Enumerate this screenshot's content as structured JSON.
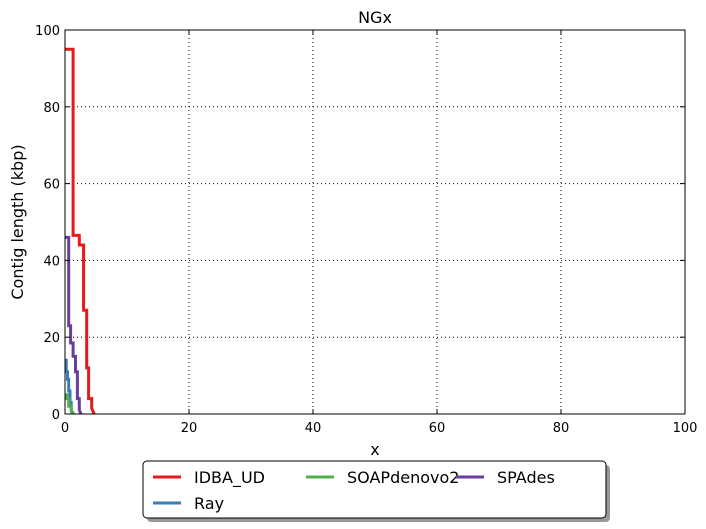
{
  "chart_data": {
    "type": "line",
    "title": "NGx",
    "xlabel": "x",
    "ylabel": "Contig length  (kbp)",
    "xlim": [
      0,
      100
    ],
    "ylim": [
      0,
      100
    ],
    "xticks": [
      0,
      20,
      40,
      60,
      80,
      100
    ],
    "yticks": [
      0,
      20,
      40,
      60,
      80,
      100
    ],
    "grid": true,
    "legend_position": "bottom-center",
    "series": [
      {
        "name": "IDBA_UD",
        "color": "#e41a1c",
        "x": [
          0,
          1.3,
          1.3,
          2.3,
          2.3,
          3.0,
          3.0,
          3.5,
          3.5,
          3.8,
          3.8,
          4.3,
          4.3,
          4.7
        ],
        "y": [
          95,
          95,
          46.5,
          46.5,
          44,
          44,
          27,
          27,
          12,
          12,
          4,
          4,
          1.5,
          0
        ]
      },
      {
        "name": "Ray",
        "color": "#377eb8",
        "x": [
          0,
          0.2,
          0.2,
          0.4,
          0.4,
          0.6,
          0.6,
          0.8,
          0.8,
          1.0,
          1.0,
          1.2
        ],
        "y": [
          14,
          14,
          11,
          11,
          9,
          9,
          6,
          6,
          3,
          3,
          1,
          0
        ]
      },
      {
        "name": "SOAPdenovo2",
        "color": "#4daf4a",
        "x": [
          0,
          0.3,
          0.3,
          0.6,
          0.6,
          1.0,
          1.0,
          1.4
        ],
        "y": [
          5,
          5,
          4,
          4,
          2,
          2,
          1,
          0
        ]
      },
      {
        "name": "SPAdes",
        "color": "#6a3d9a",
        "x": [
          0,
          0.6,
          0.6,
          0.9,
          0.9,
          1.3,
          1.3,
          1.7,
          1.7,
          2.0,
          2.0,
          2.3,
          2.3,
          2.6
        ],
        "y": [
          46,
          46,
          23,
          23,
          18.5,
          18.5,
          15,
          15,
          11,
          11,
          4,
          4,
          1,
          0
        ]
      }
    ]
  }
}
